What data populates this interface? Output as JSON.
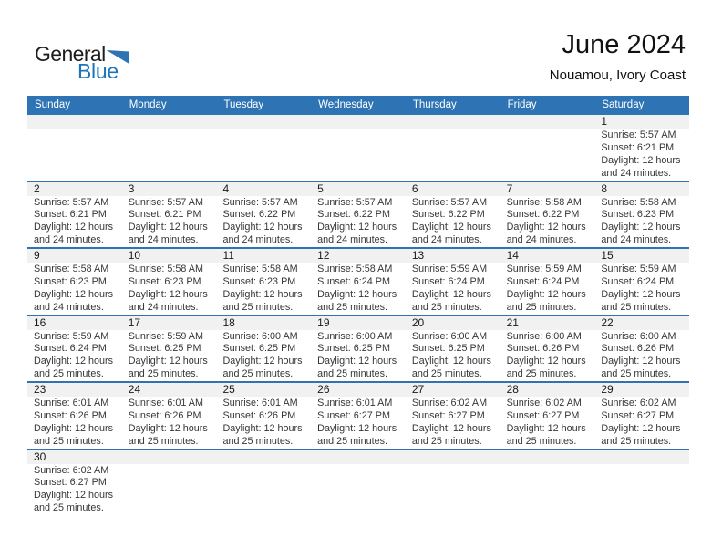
{
  "logo": {
    "general": "General",
    "blue": "Blue"
  },
  "header": {
    "title": "June 2024",
    "location": "Nouamou, Ivory Coast"
  },
  "weekday_headers": [
    "Sunday",
    "Monday",
    "Tuesday",
    "Wednesday",
    "Thursday",
    "Friday",
    "Saturday"
  ],
  "colors": {
    "accent_blue": "#2e74b5",
    "logo_blue": "#1c75bc",
    "band_gray": "#f1f1f1"
  },
  "weeks": [
    [
      {
        "day": ""
      },
      {
        "day": ""
      },
      {
        "day": ""
      },
      {
        "day": ""
      },
      {
        "day": ""
      },
      {
        "day": ""
      },
      {
        "day": "1",
        "sunrise": "Sunrise: 5:57 AM",
        "sunset": "Sunset: 6:21 PM",
        "daylight1": "Daylight: 12 hours",
        "daylight2": "and 24 minutes."
      }
    ],
    [
      {
        "day": "2",
        "sunrise": "Sunrise: 5:57 AM",
        "sunset": "Sunset: 6:21 PM",
        "daylight1": "Daylight: 12 hours",
        "daylight2": "and 24 minutes."
      },
      {
        "day": "3",
        "sunrise": "Sunrise: 5:57 AM",
        "sunset": "Sunset: 6:21 PM",
        "daylight1": "Daylight: 12 hours",
        "daylight2": "and 24 minutes."
      },
      {
        "day": "4",
        "sunrise": "Sunrise: 5:57 AM",
        "sunset": "Sunset: 6:22 PM",
        "daylight1": "Daylight: 12 hours",
        "daylight2": "and 24 minutes."
      },
      {
        "day": "5",
        "sunrise": "Sunrise: 5:57 AM",
        "sunset": "Sunset: 6:22 PM",
        "daylight1": "Daylight: 12 hours",
        "daylight2": "and 24 minutes."
      },
      {
        "day": "6",
        "sunrise": "Sunrise: 5:57 AM",
        "sunset": "Sunset: 6:22 PM",
        "daylight1": "Daylight: 12 hours",
        "daylight2": "and 24 minutes."
      },
      {
        "day": "7",
        "sunrise": "Sunrise: 5:58 AM",
        "sunset": "Sunset: 6:22 PM",
        "daylight1": "Daylight: 12 hours",
        "daylight2": "and 24 minutes."
      },
      {
        "day": "8",
        "sunrise": "Sunrise: 5:58 AM",
        "sunset": "Sunset: 6:23 PM",
        "daylight1": "Daylight: 12 hours",
        "daylight2": "and 24 minutes."
      }
    ],
    [
      {
        "day": "9",
        "sunrise": "Sunrise: 5:58 AM",
        "sunset": "Sunset: 6:23 PM",
        "daylight1": "Daylight: 12 hours",
        "daylight2": "and 24 minutes."
      },
      {
        "day": "10",
        "sunrise": "Sunrise: 5:58 AM",
        "sunset": "Sunset: 6:23 PM",
        "daylight1": "Daylight: 12 hours",
        "daylight2": "and 24 minutes."
      },
      {
        "day": "11",
        "sunrise": "Sunrise: 5:58 AM",
        "sunset": "Sunset: 6:23 PM",
        "daylight1": "Daylight: 12 hours",
        "daylight2": "and 25 minutes."
      },
      {
        "day": "12",
        "sunrise": "Sunrise: 5:58 AM",
        "sunset": "Sunset: 6:24 PM",
        "daylight1": "Daylight: 12 hours",
        "daylight2": "and 25 minutes."
      },
      {
        "day": "13",
        "sunrise": "Sunrise: 5:59 AM",
        "sunset": "Sunset: 6:24 PM",
        "daylight1": "Daylight: 12 hours",
        "daylight2": "and 25 minutes."
      },
      {
        "day": "14",
        "sunrise": "Sunrise: 5:59 AM",
        "sunset": "Sunset: 6:24 PM",
        "daylight1": "Daylight: 12 hours",
        "daylight2": "and 25 minutes."
      },
      {
        "day": "15",
        "sunrise": "Sunrise: 5:59 AM",
        "sunset": "Sunset: 6:24 PM",
        "daylight1": "Daylight: 12 hours",
        "daylight2": "and 25 minutes."
      }
    ],
    [
      {
        "day": "16",
        "sunrise": "Sunrise: 5:59 AM",
        "sunset": "Sunset: 6:24 PM",
        "daylight1": "Daylight: 12 hours",
        "daylight2": "and 25 minutes."
      },
      {
        "day": "17",
        "sunrise": "Sunrise: 5:59 AM",
        "sunset": "Sunset: 6:25 PM",
        "daylight1": "Daylight: 12 hours",
        "daylight2": "and 25 minutes."
      },
      {
        "day": "18",
        "sunrise": "Sunrise: 6:00 AM",
        "sunset": "Sunset: 6:25 PM",
        "daylight1": "Daylight: 12 hours",
        "daylight2": "and 25 minutes."
      },
      {
        "day": "19",
        "sunrise": "Sunrise: 6:00 AM",
        "sunset": "Sunset: 6:25 PM",
        "daylight1": "Daylight: 12 hours",
        "daylight2": "and 25 minutes."
      },
      {
        "day": "20",
        "sunrise": "Sunrise: 6:00 AM",
        "sunset": "Sunset: 6:25 PM",
        "daylight1": "Daylight: 12 hours",
        "daylight2": "and 25 minutes."
      },
      {
        "day": "21",
        "sunrise": "Sunrise: 6:00 AM",
        "sunset": "Sunset: 6:26 PM",
        "daylight1": "Daylight: 12 hours",
        "daylight2": "and 25 minutes."
      },
      {
        "day": "22",
        "sunrise": "Sunrise: 6:00 AM",
        "sunset": "Sunset: 6:26 PM",
        "daylight1": "Daylight: 12 hours",
        "daylight2": "and 25 minutes."
      }
    ],
    [
      {
        "day": "23",
        "sunrise": "Sunrise: 6:01 AM",
        "sunset": "Sunset: 6:26 PM",
        "daylight1": "Daylight: 12 hours",
        "daylight2": "and 25 minutes."
      },
      {
        "day": "24",
        "sunrise": "Sunrise: 6:01 AM",
        "sunset": "Sunset: 6:26 PM",
        "daylight1": "Daylight: 12 hours",
        "daylight2": "and 25 minutes."
      },
      {
        "day": "25",
        "sunrise": "Sunrise: 6:01 AM",
        "sunset": "Sunset: 6:26 PM",
        "daylight1": "Daylight: 12 hours",
        "daylight2": "and 25 minutes."
      },
      {
        "day": "26",
        "sunrise": "Sunrise: 6:01 AM",
        "sunset": "Sunset: 6:27 PM",
        "daylight1": "Daylight: 12 hours",
        "daylight2": "and 25 minutes."
      },
      {
        "day": "27",
        "sunrise": "Sunrise: 6:02 AM",
        "sunset": "Sunset: 6:27 PM",
        "daylight1": "Daylight: 12 hours",
        "daylight2": "and 25 minutes."
      },
      {
        "day": "28",
        "sunrise": "Sunrise: 6:02 AM",
        "sunset": "Sunset: 6:27 PM",
        "daylight1": "Daylight: 12 hours",
        "daylight2": "and 25 minutes."
      },
      {
        "day": "29",
        "sunrise": "Sunrise: 6:02 AM",
        "sunset": "Sunset: 6:27 PM",
        "daylight1": "Daylight: 12 hours",
        "daylight2": "and 25 minutes."
      }
    ],
    [
      {
        "day": "30",
        "sunrise": "Sunrise: 6:02 AM",
        "sunset": "Sunset: 6:27 PM",
        "daylight1": "Daylight: 12 hours",
        "daylight2": "and 25 minutes."
      },
      {
        "day": ""
      },
      {
        "day": ""
      },
      {
        "day": ""
      },
      {
        "day": ""
      },
      {
        "day": ""
      },
      {
        "day": ""
      }
    ]
  ]
}
